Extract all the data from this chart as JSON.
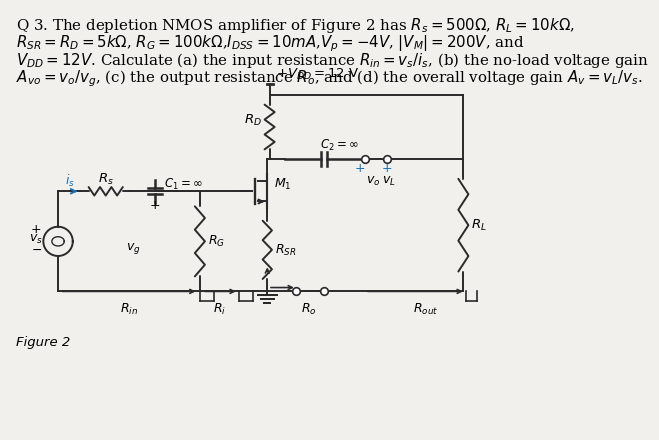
{
  "bg_color": "#f2f0ed",
  "text_color": "#000000",
  "title_lines": [
    "Q 3. The depletion NMOS amplifier of Figure 2 has $R_s = 500\\Omega$, $R_L = 10k\\Omega$,",
    "$R_{SR} = R_D = 5k\\Omega$, $R_G = 100k\\Omega$,$I_{DSS} = 10mA$,$V_p = -4V$, $|V_M| = 200V$, and",
    "$V_{DD} = 12V$. Calculate (a) the input resistance $R_{in} = v_s/i_s$, (b) the no-load voltage gain",
    "$A_{vo} = v_o/v_g$, (c) the output resistance $R_o$, and (d) the overall voltage gain $A_v = v_L/v_s$."
  ],
  "figure_label": "Figure 2",
  "wire_color": "#2a2a2a",
  "arrow_color": "#1a6faf",
  "lw": 1.4
}
